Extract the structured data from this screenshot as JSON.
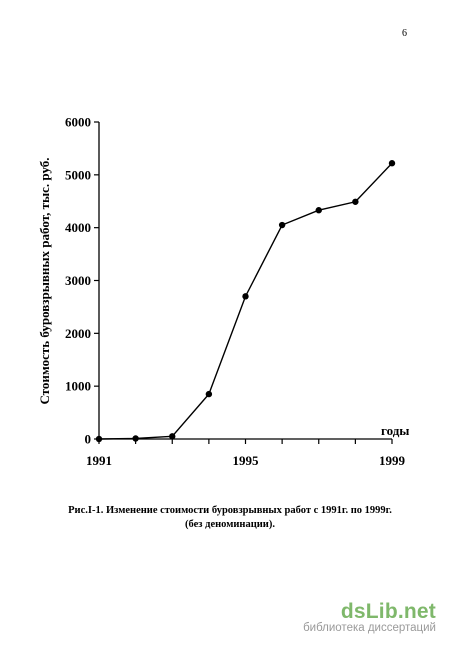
{
  "page": {
    "number": "6",
    "caption_line1": "Рис.I-1. Изменение  стоимости буровзрывных работ с 1991г. по 1999г.",
    "caption_line2": "(без деноминации)."
  },
  "watermark": {
    "logo": "dsLib.net",
    "subtitle": "библиотека диссертаций",
    "color": "#7fb86b"
  },
  "chart_data": {
    "type": "line",
    "title": "",
    "xlabel": "годы",
    "ylabel": "Стоимость буровзрывных работ, тыс. руб.",
    "x": [
      1991,
      1992,
      1993,
      1994,
      1995,
      1996,
      1997,
      1998,
      1999
    ],
    "series": [
      {
        "values": [
          0,
          10,
          50,
          850,
          2700,
          4050,
          4330,
          4490,
          5220
        ]
      }
    ],
    "xlim": [
      1991,
      1999
    ],
    "ylim": [
      0,
      6000
    ],
    "x_ticks": [
      1991,
      1995,
      1999
    ],
    "x_tick_labels": [
      "1991",
      "1995",
      "1999"
    ],
    "y_ticks": [
      0,
      1000,
      2000,
      3000,
      4000,
      5000,
      6000
    ],
    "y_tick_labels": [
      "0",
      "1000",
      "2000",
      "3000",
      "4000",
      "5000",
      "6000"
    ],
    "grid": false,
    "legend": "none",
    "markers": "filled-circle"
  }
}
